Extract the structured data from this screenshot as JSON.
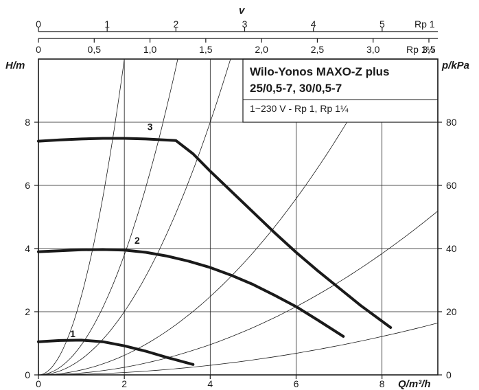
{
  "chart_data": {
    "type": "line",
    "title": [
      "Wilo-Yonos MAXO-Z plus",
      "25/0,5-7, 30/0,5-7"
    ],
    "subtitle": "1~230 V - Rp 1, Rp 1¼",
    "xlabel": "Q/m³/h",
    "xlim": [
      0,
      9.3
    ],
    "x_ticks": [
      "0",
      "2",
      "4",
      "6",
      "8"
    ],
    "ylabel": "H/m",
    "ylim": [
      0,
      10
    ],
    "y_ticks": [
      "0",
      "2",
      "4",
      "6",
      "8"
    ],
    "y2label": "p/kPa",
    "y2_ticks": [
      "0",
      "20",
      "40",
      "60",
      "80"
    ],
    "velocity_label": "v",
    "velocity_scales": [
      {
        "name": "Rp 1",
        "ticks": [
          "0",
          "1",
          "2",
          "3",
          "4",
          "5"
        ],
        "values": [
          0,
          1,
          2,
          3,
          4,
          5
        ],
        "max": 5.81
      },
      {
        "name": "Rp 1¼",
        "ticks": [
          "0",
          "0,5",
          "1,0",
          "1,5",
          "2,0",
          "2,5",
          "3,0",
          "3,5"
        ],
        "values": [
          0,
          0.5,
          1.0,
          1.5,
          2.0,
          2.5,
          3.0,
          3.5
        ],
        "max": 3.58
      }
    ],
    "grid": true,
    "series": [
      {
        "name": "1",
        "points": [
          [
            0,
            1.05
          ],
          [
            0.5,
            1.09
          ],
          [
            1.0,
            1.1
          ],
          [
            1.5,
            1.05
          ],
          [
            2.0,
            0.92
          ],
          [
            2.5,
            0.75
          ],
          [
            3.0,
            0.55
          ],
          [
            3.6,
            0.33
          ]
        ]
      },
      {
        "name": "2",
        "points": [
          [
            0,
            3.9
          ],
          [
            0.5,
            3.93
          ],
          [
            1.0,
            3.96
          ],
          [
            1.5,
            3.97
          ],
          [
            2.0,
            3.95
          ],
          [
            2.5,
            3.88
          ],
          [
            3.0,
            3.76
          ],
          [
            3.5,
            3.6
          ],
          [
            4.0,
            3.4
          ],
          [
            4.5,
            3.15
          ],
          [
            5.0,
            2.86
          ],
          [
            5.5,
            2.52
          ],
          [
            6.0,
            2.16
          ],
          [
            6.5,
            1.74
          ],
          [
            7.1,
            1.22
          ]
        ]
      },
      {
        "name": "3",
        "points": [
          [
            0,
            7.4
          ],
          [
            0.5,
            7.44
          ],
          [
            1.0,
            7.47
          ],
          [
            1.5,
            7.49
          ],
          [
            2.0,
            7.49
          ],
          [
            2.5,
            7.47
          ],
          [
            3.2,
            7.42
          ],
          [
            3.6,
            7.0
          ],
          [
            4.0,
            6.45
          ],
          [
            4.5,
            5.8
          ],
          [
            5.0,
            5.15
          ],
          [
            5.5,
            4.5
          ],
          [
            6.0,
            3.88
          ],
          [
            6.5,
            3.3
          ],
          [
            7.0,
            2.75
          ],
          [
            7.5,
            2.2
          ],
          [
            8.2,
            1.5
          ]
        ]
      }
    ],
    "system_curves_k": [
      2.5,
      0.95,
      0.5,
      0.155,
      0.06,
      0.019
    ]
  }
}
